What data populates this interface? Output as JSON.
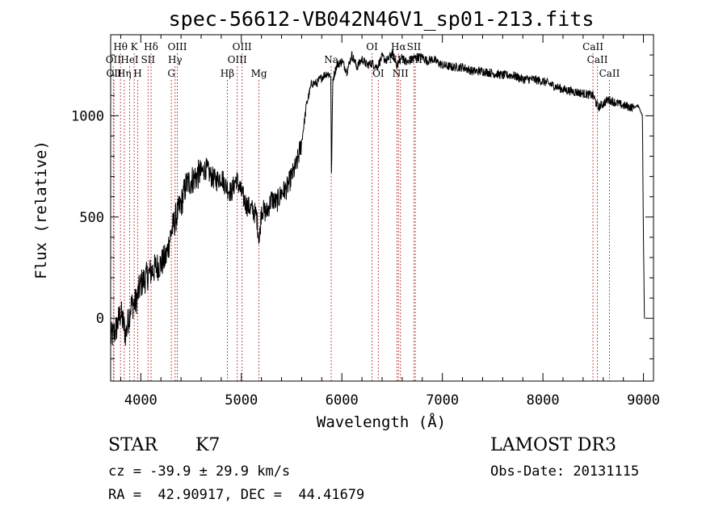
{
  "chart_data": {
    "type": "line",
    "title": "spec-56612-VB042N46V1_sp01-213.fits",
    "xlabel": "Wavelength (Å)",
    "ylabel": "Flux (relative)",
    "xlim": [
      3700,
      9100
    ],
    "ylim": [
      -310,
      1400
    ],
    "xticks": [
      4000,
      5000,
      6000,
      7000,
      8000,
      9000
    ],
    "yticks": [
      0,
      500,
      1000
    ],
    "series": [
      {
        "name": "spectrum",
        "x": [
          3700,
          3750,
          3800,
          3850,
          3900,
          3950,
          4000,
          4050,
          4100,
          4150,
          4200,
          4250,
          4300,
          4350,
          4400,
          4450,
          4500,
          4550,
          4600,
          4650,
          4700,
          4750,
          4800,
          4850,
          4900,
          4950,
          5000,
          5050,
          5100,
          5150,
          5180,
          5200,
          5250,
          5300,
          5350,
          5400,
          5450,
          5500,
          5550,
          5600,
          5650,
          5700,
          5750,
          5800,
          5850,
          5890,
          5896,
          5910,
          5950,
          6000,
          6050,
          6100,
          6150,
          6200,
          6250,
          6300,
          6350,
          6400,
          6450,
          6500,
          6550,
          6600,
          6650,
          6700,
          6750,
          6800,
          6850,
          6900,
          7000,
          7100,
          7200,
          7300,
          7400,
          7500,
          7600,
          7700,
          7800,
          7900,
          8000,
          8100,
          8200,
          8300,
          8400,
          8500,
          8550,
          8600,
          8650,
          8700,
          8800,
          8900,
          8950,
          8990,
          9000,
          9010
        ],
        "values": [
          -100,
          -60,
          30,
          -80,
          60,
          80,
          170,
          200,
          230,
          250,
          270,
          300,
          420,
          500,
          560,
          660,
          680,
          700,
          720,
          740,
          700,
          680,
          700,
          650,
          620,
          690,
          620,
          560,
          540,
          510,
          380,
          540,
          520,
          590,
          570,
          620,
          640,
          700,
          760,
          870,
          1060,
          1160,
          1160,
          1190,
          1210,
          1200,
          700,
          1180,
          1250,
          1270,
          1220,
          1300,
          1240,
          1280,
          1250,
          1260,
          1240,
          1290,
          1270,
          1310,
          1250,
          1290,
          1260,
          1280,
          1290,
          1290,
          1270,
          1280,
          1250,
          1240,
          1240,
          1220,
          1220,
          1210,
          1200,
          1200,
          1180,
          1180,
          1170,
          1150,
          1130,
          1120,
          1110,
          1100,
          1040,
          1060,
          1080,
          1070,
          1050,
          1040,
          1050,
          1000,
          380,
          0
        ]
      }
    ],
    "lines": [
      {
        "wavelength": 3727,
        "label": "OII",
        "row": 1
      },
      {
        "wavelength": 3733,
        "label": "OII",
        "row": 2
      },
      {
        "wavelength": 3798,
        "label": "Hθ",
        "row": 0
      },
      {
        "wavelength": 3835,
        "label": "Hη",
        "row": 2
      },
      {
        "wavelength": 3889,
        "label": "HeI",
        "row": 1
      },
      {
        "wavelength": 3934,
        "label": "K",
        "row": 0
      },
      {
        "wavelength": 3969,
        "label": "H",
        "row": 2
      },
      {
        "wavelength": 4072,
        "label": "SII",
        "row": 1
      },
      {
        "wavelength": 4102,
        "label": "Hδ",
        "row": 0
      },
      {
        "wavelength": 4304,
        "label": "G",
        "row": 2
      },
      {
        "wavelength": 4341,
        "label": "Hγ",
        "row": 1
      },
      {
        "wavelength": 4363,
        "label": "OIII",
        "row": 0
      },
      {
        "wavelength": 4861,
        "label": "Hβ",
        "row": 2
      },
      {
        "wavelength": 4959,
        "label": "OIII",
        "row": 1
      },
      {
        "wavelength": 5007,
        "label": "OIII",
        "row": 0
      },
      {
        "wavelength": 5175,
        "label": "Mg",
        "row": 2
      },
      {
        "wavelength": 5894,
        "label": "Na",
        "row": 1
      },
      {
        "wavelength": 6300,
        "label": "OI",
        "row": 0
      },
      {
        "wavelength": 6363,
        "label": "OI",
        "row": 2
      },
      {
        "wavelength": 6548,
        "label": "NII",
        "row": 1
      },
      {
        "wavelength": 6563,
        "label": "Hα",
        "row": 0
      },
      {
        "wavelength": 6583,
        "label": "NII",
        "row": 2
      },
      {
        "wavelength": 6717,
        "label": "SII",
        "row": 0
      },
      {
        "wavelength": 6731,
        "label": "SII",
        "row": 1
      },
      {
        "wavelength": 8498,
        "label": "CaII",
        "row": 0
      },
      {
        "wavelength": 8542,
        "label": "CaII",
        "row": 1
      },
      {
        "wavelength": 8662,
        "label": "CaII",
        "row": 2
      }
    ]
  },
  "info": {
    "object_class": "STAR",
    "subclass": "K7",
    "survey": "LAMOST DR3",
    "redshift_line": "cz = -39.9 ± 29.9 km/s",
    "obs_date": "Obs-Date: 20131115",
    "coords_line": "RA =  42.90917, DEC =  44.41679"
  },
  "colors": {
    "spectrum": "#000000",
    "line_markers": "#c0504d",
    "axes": "#000000"
  }
}
